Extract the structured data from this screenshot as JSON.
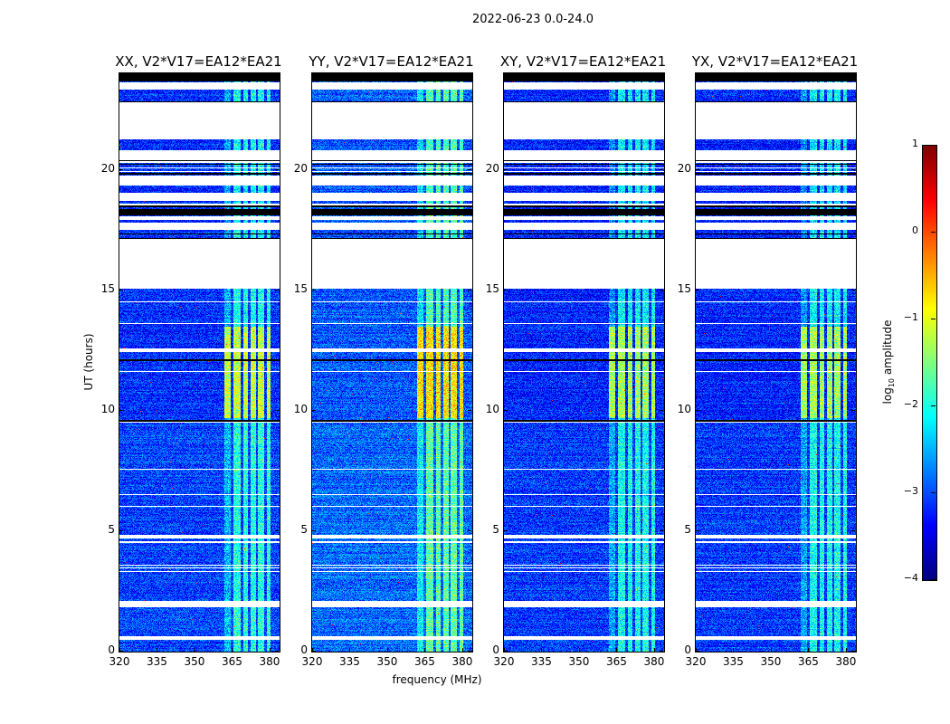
{
  "figure_title": "2022-06-23 0.0-24.0",
  "chart_data": {
    "type": "heatmap",
    "title": "2022-06-23 0.0-24.0",
    "xlabel": "frequency (MHz)",
    "ylabel": "UT (hours)",
    "xlim": [
      320,
      384
    ],
    "ylim": [
      0,
      24
    ],
    "xticks": [
      320,
      335,
      350,
      365,
      380
    ],
    "yticks": [
      0,
      5,
      10,
      15,
      20
    ],
    "panels": [
      {
        "title": "XX, V2*V17=EA12*EA21",
        "base": -3.15,
        "rfi_gain": 1.0
      },
      {
        "title": "YY, V2*V17=EA12*EA21",
        "base": -2.95,
        "rfi_gain": 1.1
      },
      {
        "title": "XY, V2*V17=EA12*EA21",
        "base": -3.2,
        "rfi_gain": 0.95
      },
      {
        "title": "YX, V2*V17=EA12*EA21",
        "base": -3.2,
        "rfi_gain": 0.95
      }
    ],
    "flagged_hours": [
      [
        0.5,
        0.65
      ],
      [
        1.85,
        2.1
      ],
      [
        3.3,
        3.36
      ],
      [
        3.45,
        3.5
      ],
      [
        3.55,
        3.62
      ],
      [
        4.5,
        4.6
      ],
      [
        4.7,
        4.85
      ],
      [
        6.0,
        6.05
      ],
      [
        6.5,
        6.55
      ],
      [
        7.55,
        7.6
      ],
      [
        9.5,
        9.6
      ],
      [
        11.6,
        11.65
      ],
      [
        12.45,
        12.6
      ],
      [
        13.6,
        13.65
      ],
      [
        14.5,
        14.55
      ],
      [
        15.05,
        17.12
      ],
      [
        17.5,
        17.8
      ],
      [
        17.9,
        18.05
      ],
      [
        18.5,
        18.6
      ],
      [
        18.7,
        19.05
      ],
      [
        19.35,
        19.75
      ],
      [
        19.9,
        19.95
      ],
      [
        20.05,
        20.1
      ],
      [
        20.3,
        20.8
      ],
      [
        21.25,
        22.78
      ],
      [
        23.32,
        23.62
      ]
    ],
    "black_hours": [
      [
        9.55,
        9.62
      ],
      [
        12.05,
        12.15
      ],
      [
        17.12,
        17.18
      ],
      [
        17.3,
        17.35
      ],
      [
        18.1,
        18.35
      ],
      [
        18.45,
        18.5
      ],
      [
        19.8,
        19.85
      ],
      [
        20.2,
        20.25
      ],
      [
        20.35,
        20.4
      ],
      [
        22.78,
        22.85
      ],
      [
        23.62,
        23.64
      ],
      [
        23.65,
        24.0
      ]
    ],
    "rfi_bands_mhz": [
      [
        362,
        364.5
      ],
      [
        365.5,
        368.5
      ],
      [
        369.5,
        371.5
      ],
      [
        372.5,
        374.5
      ],
      [
        375.5,
        378
      ],
      [
        379,
        380.5
      ]
    ],
    "rfi_strong_hours": [
      9.7,
      13.5
    ],
    "colorbar": {
      "label_prefix": "log",
      "label_sub": "10",
      "label_suffix": " amplitude",
      "range": [
        -4,
        1
      ],
      "ticks": [
        "1",
        "0",
        "−1",
        "−2",
        "−3",
        "−4"
      ],
      "tick_values": [
        1,
        0,
        -1,
        -2,
        -3,
        -4
      ],
      "colormap": "jet"
    },
    "xtick_labels": [
      "320",
      "335",
      "350",
      "365",
      "380"
    ],
    "ytick_labels": [
      "0",
      "5",
      "10",
      "15",
      "20"
    ]
  }
}
